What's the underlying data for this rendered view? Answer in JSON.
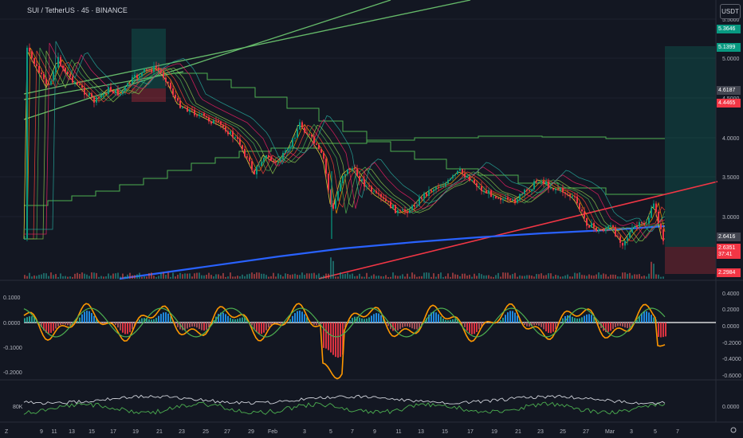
{
  "header": {
    "symbol_title": "SUI / TetherUS · 45 · BINANCE",
    "currency_button": "USDT"
  },
  "price_axis": {
    "ticks": [
      "5.5000",
      "5.0000",
      "4.5000",
      "4.0000",
      "3.5000",
      "3.0000"
    ],
    "labels": [
      {
        "text": "5.3646",
        "bg": "#089981"
      },
      {
        "text": "5.1399",
        "bg": "#089981"
      },
      {
        "text": "4.6187",
        "bg": "#434651"
      },
      {
        "text": "4.4465",
        "bg": "#f23645"
      },
      {
        "text": "2.6416",
        "bg": "#434651"
      },
      {
        "text": "2.6351",
        "bg": "#f23645"
      },
      {
        "text": "37:41",
        "bg": "#f23645"
      },
      {
        "text": "2.2984",
        "bg": "#f23645"
      }
    ]
  },
  "osc_axis_left": [
    "0.1000",
    "0.0000",
    "-0.1000",
    "-0.2000"
  ],
  "osc_axis_right": [
    "0.4000",
    "0.2000",
    "0.0000",
    "-0.2000",
    "-0.4000",
    "-0.6000"
  ],
  "vol_axis": {
    "left": "80K",
    "right": "0.0000"
  },
  "time_axis": {
    "ticks": [
      "9",
      "11",
      "13",
      "15",
      "17",
      "19",
      "21",
      "23",
      "25",
      "27",
      "29",
      "Feb",
      "3",
      "5",
      "7",
      "9",
      "11",
      "13",
      "15",
      "17",
      "19",
      "21",
      "23",
      "25",
      "27",
      "Mar",
      "3",
      "5",
      "7"
    ]
  },
  "chart_annotations": {
    "bottom_left_icon_text": "Z",
    "bottom_right_settings_icon": "gear-icon"
  },
  "colors": {
    "background": "#131722",
    "up": "#089981",
    "down": "#f23645",
    "trendline_green": "#66bb6a",
    "trendline_red": "#f23645",
    "trendline_blue": "#2962ff"
  }
}
